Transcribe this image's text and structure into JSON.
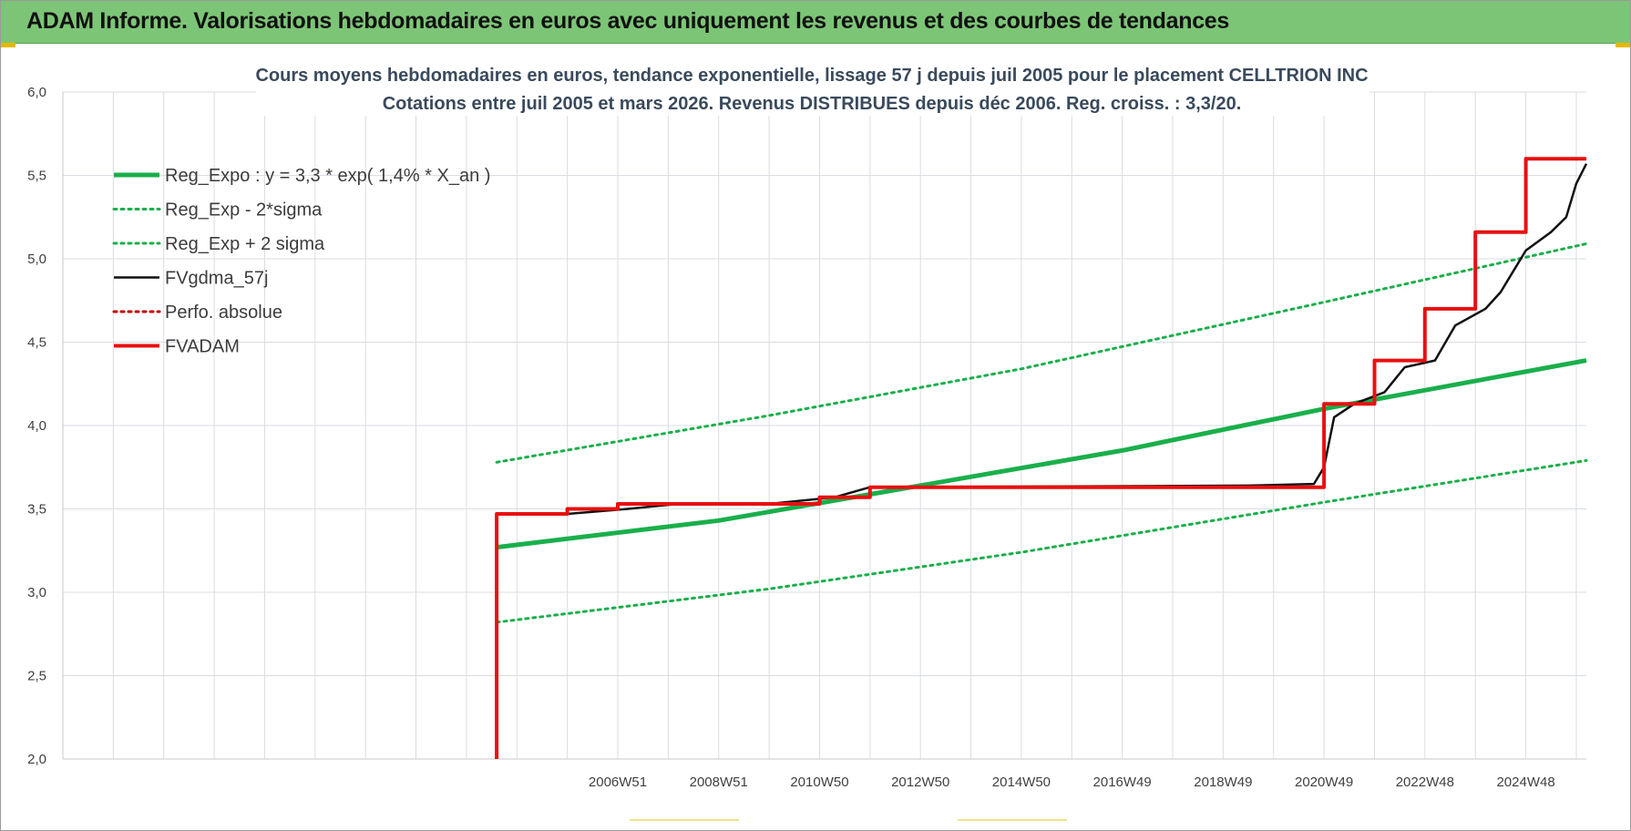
{
  "banner": {
    "title": "ADAM Informe. Valorisations hebdomadaires en euros avec uniquement les revenus et des courbes de tendances"
  },
  "colors": {
    "banner_bg": "#7cc576",
    "trend": "#1aaf4b",
    "fv": "#111111",
    "adam": "#e81010",
    "perf": "#c00000",
    "grid": "#d9dde2"
  },
  "chart_data": {
    "type": "line",
    "title": "Cours moyens hebdomadaires en euros, tendance exponentielle, lissage 57 j depuis juil 2005 pour le placement CELLTRION INC",
    "subtitle": "Cotations entre juil 2005 et mars 2026. Revenus DISTRIBUES depuis déc 2006. Reg. croiss. : 3,3/20.",
    "xlabel": "",
    "ylabel": "",
    "ylim": [
      2.0,
      6.0
    ],
    "xlim": [
      1996.0,
      2026.2
    ],
    "y_ticks": [
      "2,0",
      "2,5",
      "3,0",
      "3,5",
      "4,0",
      "4,5",
      "5,0",
      "5,5",
      "6,0"
    ],
    "y_tick_values": [
      2.0,
      2.5,
      3.0,
      3.5,
      4.0,
      4.5,
      5.0,
      5.5,
      6.0
    ],
    "x_ticks": [
      "2006W51",
      "2008W51",
      "2010W50",
      "2012W50",
      "2014W50",
      "2016W49",
      "2018W49",
      "2020W49",
      "2022W48",
      "2024W48"
    ],
    "x_tick_values": [
      2007.0,
      2009.0,
      2011.0,
      2013.0,
      2015.0,
      2017.0,
      2019.0,
      2021.0,
      2023.0,
      2025.0
    ],
    "grid": true,
    "legend_position": "top-left",
    "series": [
      {
        "name": "Reg_Expo : y = 3,3 * exp( 1,4% *  X_an )",
        "style": "solid-thick",
        "color": "#1aaf4b",
        "points": [
          [
            2004.6,
            3.27
          ],
          [
            2009.0,
            3.43
          ],
          [
            2013.0,
            3.64
          ],
          [
            2017.0,
            3.85
          ],
          [
            2021.0,
            4.1
          ],
          [
            2026.2,
            4.39
          ]
        ]
      },
      {
        "name": "Reg_Exp - 2*sigma",
        "style": "dotted",
        "color": "#1aaf4b",
        "points": [
          [
            2004.6,
            2.82
          ],
          [
            2010.0,
            3.02
          ],
          [
            2015.0,
            3.24
          ],
          [
            2021.0,
            3.54
          ],
          [
            2026.2,
            3.79
          ]
        ]
      },
      {
        "name": "Reg_Exp + 2 sigma",
        "style": "dotted",
        "color": "#1aaf4b",
        "points": [
          [
            2004.6,
            3.78
          ],
          [
            2010.0,
            4.06
          ],
          [
            2015.0,
            4.34
          ],
          [
            2021.0,
            4.74
          ],
          [
            2026.2,
            5.09
          ]
        ]
      },
      {
        "name": "FVgdma_57j",
        "style": "solid",
        "color": "#111111",
        "points": [
          [
            2004.6,
            3.47
          ],
          [
            2006.0,
            3.47
          ],
          [
            2007.2,
            3.5
          ],
          [
            2008.2,
            3.53
          ],
          [
            2010.0,
            3.53
          ],
          [
            2011.3,
            3.57
          ],
          [
            2012.0,
            3.63
          ],
          [
            2019.5,
            3.64
          ],
          [
            2020.8,
            3.65
          ],
          [
            2021.0,
            3.75
          ],
          [
            2021.2,
            4.05
          ],
          [
            2021.6,
            4.13
          ],
          [
            2022.2,
            4.2
          ],
          [
            2022.6,
            4.35
          ],
          [
            2023.2,
            4.39
          ],
          [
            2023.6,
            4.6
          ],
          [
            2024.2,
            4.7
          ],
          [
            2024.5,
            4.8
          ],
          [
            2025.0,
            5.05
          ],
          [
            2025.5,
            5.16
          ],
          [
            2025.8,
            5.25
          ],
          [
            2026.0,
            5.45
          ],
          [
            2026.2,
            5.57
          ]
        ]
      },
      {
        "name": "Perfo. absolue",
        "style": "dotted",
        "color": "#c00000",
        "points": []
      },
      {
        "name": "FVADAM",
        "style": "step-thick",
        "color": "#e81010",
        "points": [
          [
            2004.6,
            2.0
          ],
          [
            2004.6,
            3.47
          ],
          [
            2006.0,
            3.47
          ],
          [
            2006.0,
            3.5
          ],
          [
            2007.0,
            3.5
          ],
          [
            2007.0,
            3.53
          ],
          [
            2011.0,
            3.53
          ],
          [
            2011.0,
            3.57
          ],
          [
            2012.0,
            3.57
          ],
          [
            2012.0,
            3.63
          ],
          [
            2021.0,
            3.63
          ],
          [
            2021.0,
            4.13
          ],
          [
            2022.0,
            4.13
          ],
          [
            2022.0,
            4.39
          ],
          [
            2023.0,
            4.39
          ],
          [
            2023.0,
            4.7
          ],
          [
            2024.0,
            4.7
          ],
          [
            2024.0,
            5.16
          ],
          [
            2025.0,
            5.16
          ],
          [
            2025.0,
            5.6
          ],
          [
            2026.2,
            5.6
          ]
        ]
      }
    ]
  }
}
